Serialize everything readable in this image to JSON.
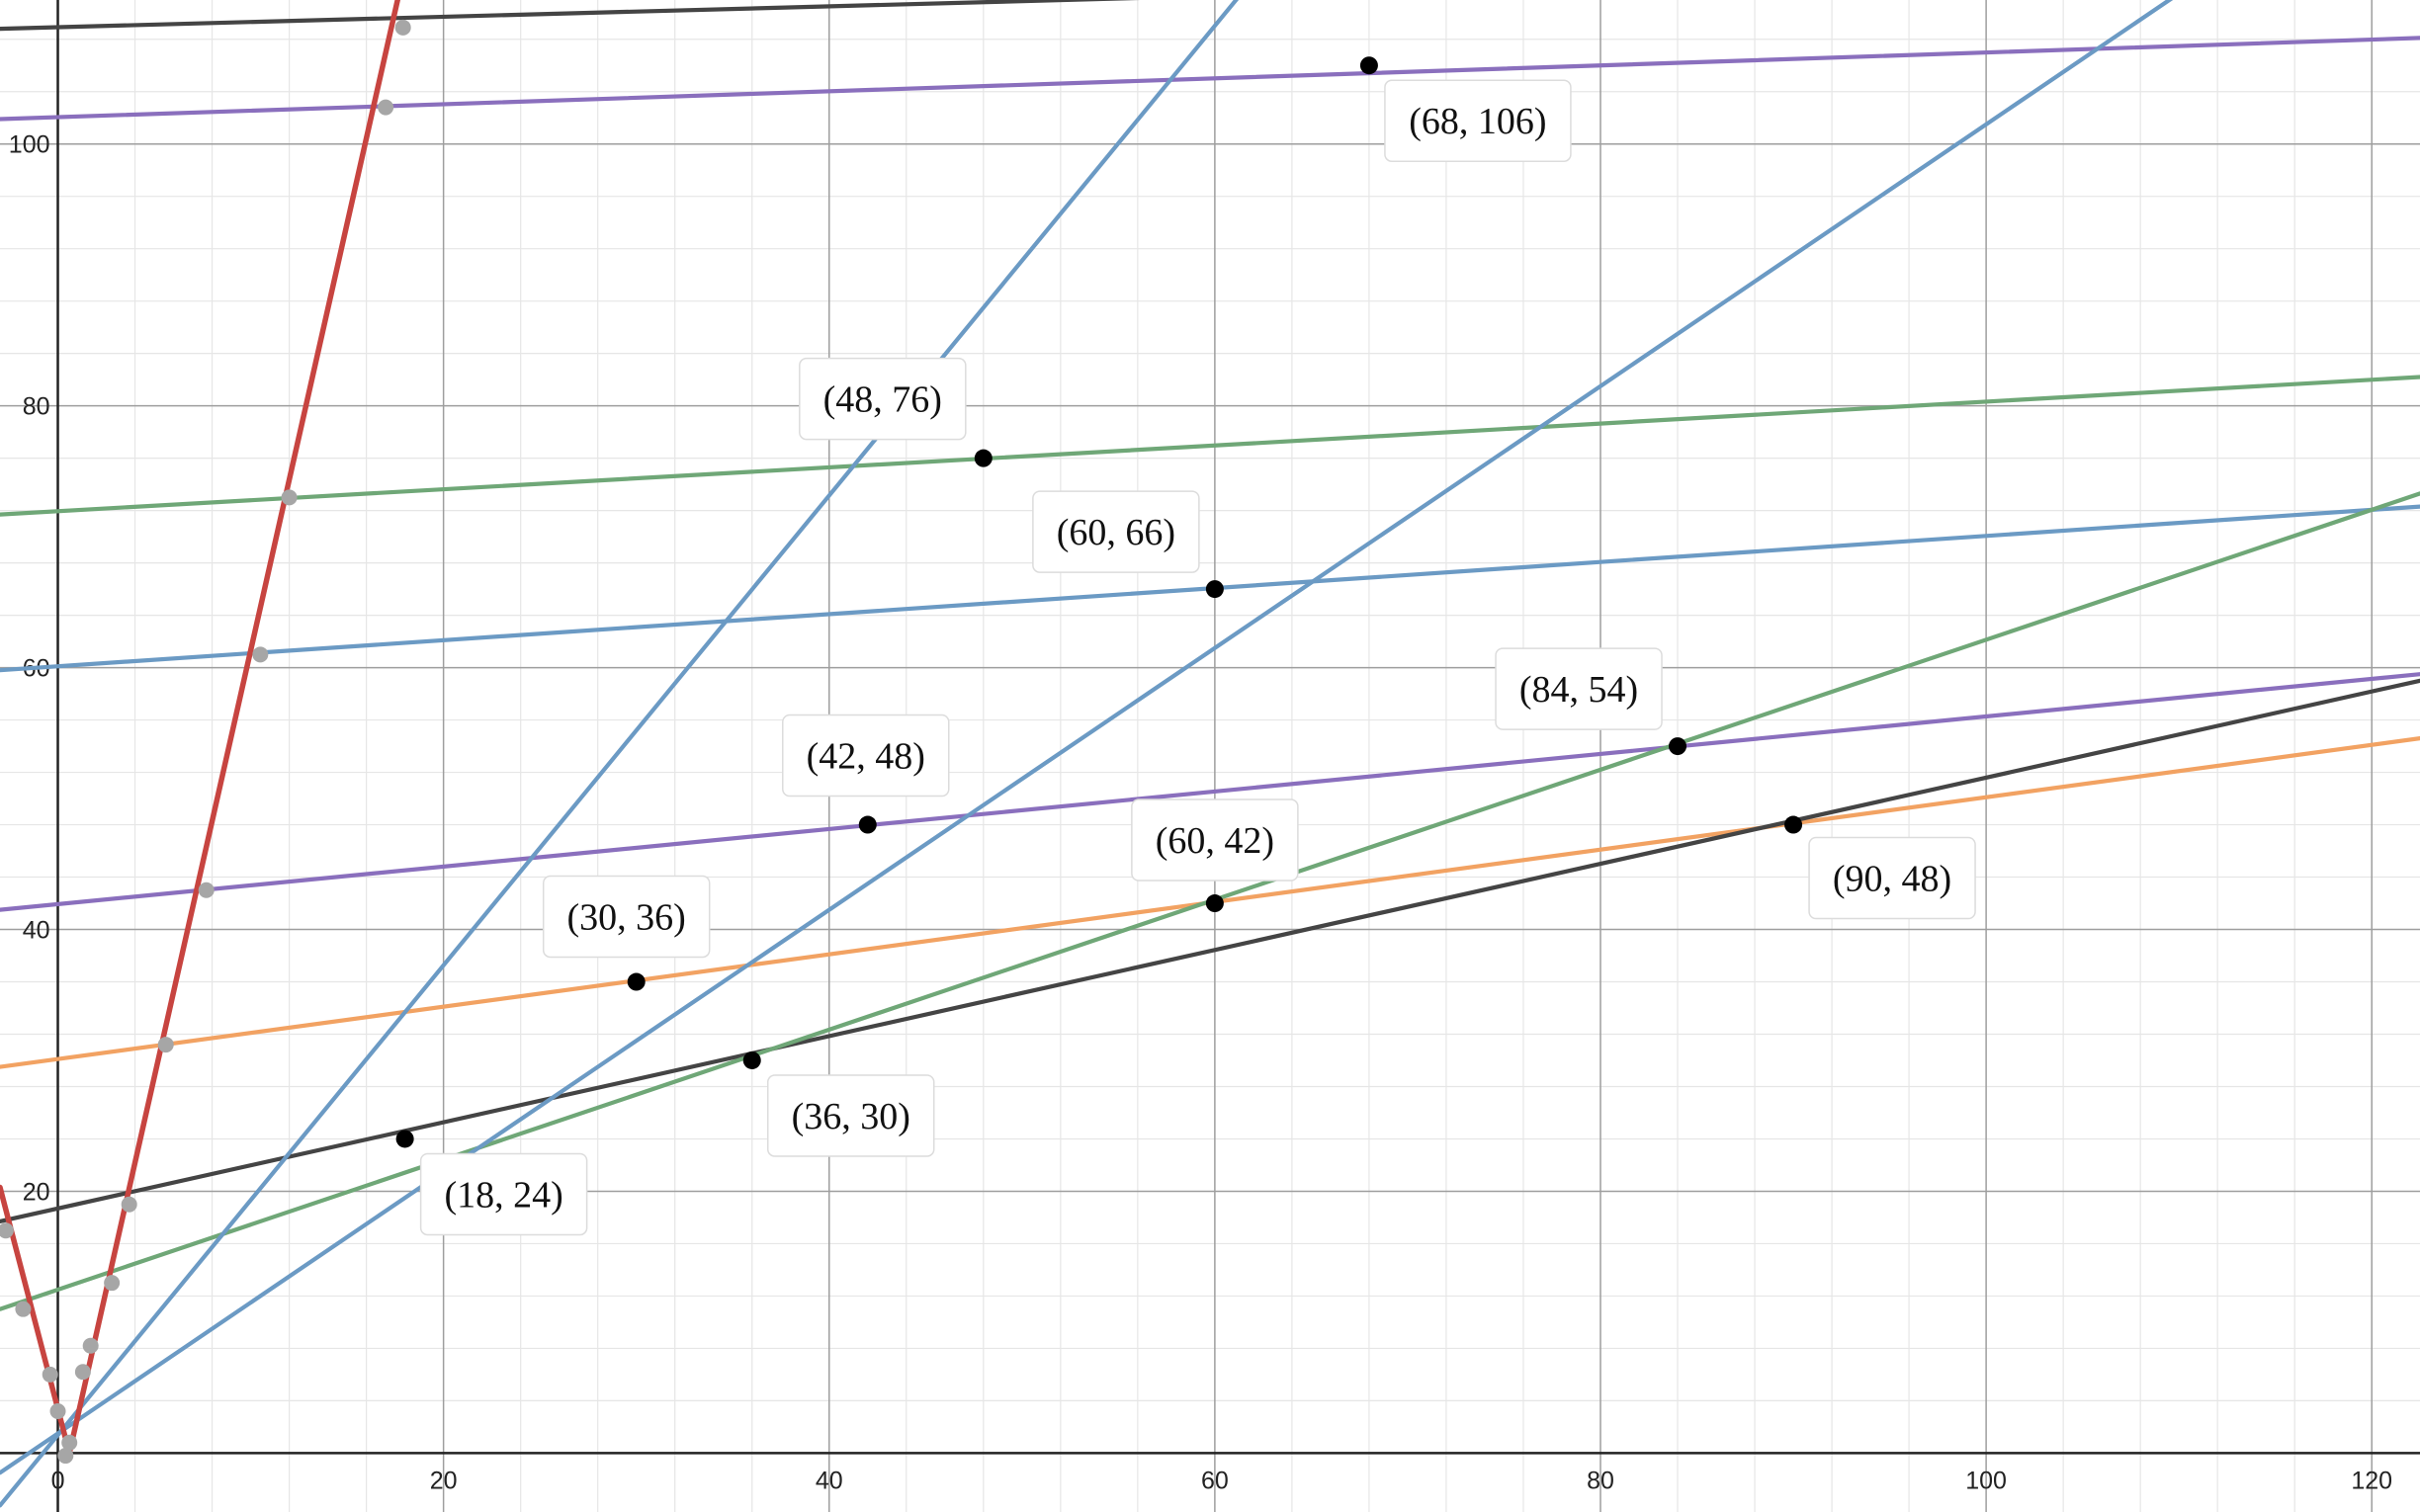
{
  "chart_data": {
    "type": "line",
    "xlim": [
      -3,
      122.5
    ],
    "ylim": [
      -4.5,
      111
    ],
    "grid": true,
    "x_ticks": [
      0,
      20,
      40,
      60,
      80,
      100,
      120
    ],
    "y_ticks": [
      20,
      40,
      60,
      80,
      100
    ],
    "x_tick_labels": [
      "0",
      "20",
      "40",
      "60",
      "80",
      "100",
      "120"
    ],
    "y_tick_labels": [
      "20",
      "40",
      "60",
      "80",
      "100"
    ],
    "colors": {
      "red": "#c74440",
      "blue": "#6b9ac4",
      "green": "#6fa777",
      "purple": "#8a6fbd",
      "orange": "#f2a262",
      "black": "#444444",
      "point": "#000000",
      "gray_point": "#a6a6a6"
    },
    "series": [
      {
        "color": "black",
        "points": [
          [
            -3,
            108.8
          ],
          [
            122.5,
            113.8
          ]
        ]
      },
      {
        "color": "purple",
        "points": [
          [
            -3,
            101.9
          ],
          [
            122.5,
            108.1
          ]
        ]
      },
      {
        "color": "green",
        "points": [
          [
            -3,
            71.7
          ],
          [
            122.5,
            82.2
          ]
        ]
      },
      {
        "color": "blue",
        "points": [
          [
            -3,
            59.8
          ],
          [
            122.5,
            72.3
          ]
        ]
      },
      {
        "color": "purple",
        "points": [
          [
            -3,
            41.5
          ],
          [
            122.5,
            59.5
          ]
        ]
      },
      {
        "color": "orange",
        "points": [
          [
            -3,
            29.5
          ],
          [
            122.5,
            54.6
          ]
        ]
      },
      {
        "color": "black",
        "points": [
          [
            -3,
            17.7
          ],
          [
            122.5,
            59.0
          ]
        ]
      },
      {
        "color": "green",
        "points": [
          [
            -3,
            11.0
          ],
          [
            122.5,
            73.3
          ]
        ]
      },
      {
        "color": "blue",
        "points": [
          [
            -3,
            -4.0
          ],
          [
            65.0,
            118.0
          ]
        ]
      },
      {
        "color": "blue",
        "points": [
          [
            -3,
            -1.5
          ],
          [
            122.5,
            124.0
          ]
        ]
      },
      {
        "color": "red",
        "points": [
          [
            -3,
            20.3
          ],
          [
            0.6,
            0.0
          ],
          [
            19.0,
            120.0
          ]
        ]
      }
    ],
    "intersections": [
      {
        "x": 18,
        "y": 24,
        "label": "(18, 24)"
      },
      {
        "x": 30,
        "y": 36,
        "label": "(30, 36)"
      },
      {
        "x": 36,
        "y": 30,
        "label": "(36, 30)"
      },
      {
        "x": 42,
        "y": 48,
        "label": "(42, 48)"
      },
      {
        "x": 48,
        "y": 76,
        "label": "(48, 76)"
      },
      {
        "x": 60,
        "y": 42,
        "label": "(60, 42)"
      },
      {
        "x": 60,
        "y": 66,
        "label": "(60, 66)"
      },
      {
        "x": 68,
        "y": 106,
        "label": "(68, 106)"
      },
      {
        "x": 84,
        "y": 54,
        "label": "(84, 54)"
      },
      {
        "x": 90,
        "y": 48,
        "label": "(90, 48)"
      }
    ],
    "gray_points": [
      [
        17.9,
        108.9
      ],
      [
        17.0,
        102.8
      ],
      [
        12.0,
        73.0
      ],
      [
        10.5,
        61.0
      ],
      [
        7.7,
        43.0
      ],
      [
        5.6,
        31.2
      ],
      [
        3.7,
        19.0
      ],
      [
        2.8,
        13.0
      ],
      [
        1.7,
        8.2
      ],
      [
        1.3,
        6.2
      ],
      [
        0.6,
        0.8
      ],
      [
        0.4,
        -0.2
      ],
      [
        0.0,
        3.2
      ],
      [
        -0.4,
        6.0
      ],
      [
        -1.8,
        11.0
      ],
      [
        -2.7,
        17.0
      ]
    ]
  }
}
